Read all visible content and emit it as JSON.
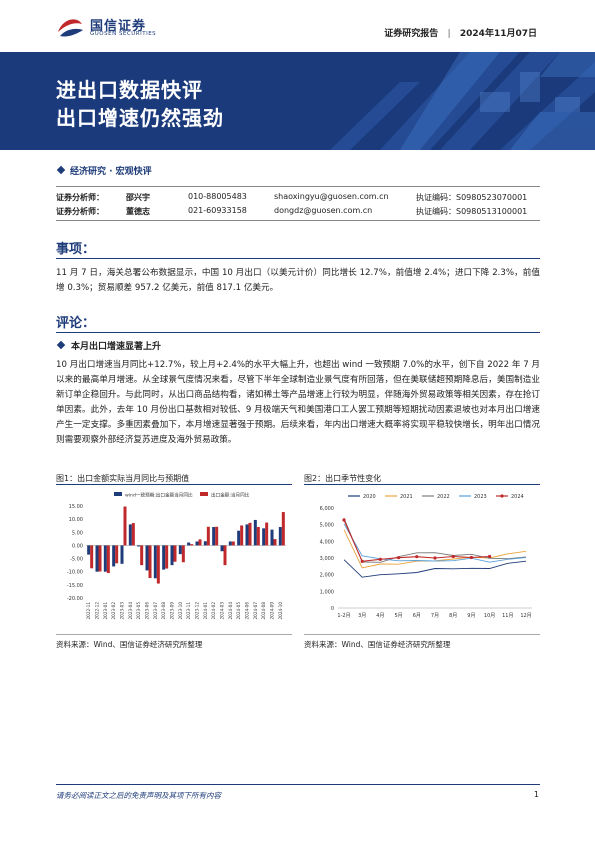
{
  "header": {
    "logo_cn": "国信证券",
    "logo_en": "GUOSEN SECURITIES",
    "report_type": "证券研究报告",
    "date": "2024年11月07日"
  },
  "banner": {
    "title_line1": "进出口数据快评",
    "title_line2": "出口增速仍然强劲"
  },
  "category": "经济研究 · 宏观快评",
  "analysts": [
    {
      "role": "证券分析师：",
      "name": "邵兴宇",
      "phone": "010-88005483",
      "email": "shaoxingyu@guosen.com.cn",
      "cert": "执证编码：S0980523070001"
    },
    {
      "role": "证券分析师：",
      "name": "董德志",
      "phone": "021-60933158",
      "email": "dongdz@guosen.com.cn",
      "cert": "执证编码：S0980513100001"
    }
  ],
  "sections": {
    "matter_title": "事项：",
    "matter_text": "11 月 7 日，海关总署公布数据显示，中国 10 月出口（以美元计价）同比增长 12.7%，前值增 2.4%；进口下降 2.3%，前值增 0.3%；贸易顺差 957.2 亿美元，前值 817.1 亿美元。",
    "comment_title": "评论：",
    "sub1_title": "本月出口增速显著上升",
    "sub1_text": "10 月出口增速当月同比+12.7%，较上月+2.4%的水平大幅上升，也超出 wind 一致预期 7.0%的水平，创下自 2022 年 7 月以来的最高单月增速。从全球景气度情况来看，尽管下半年全球制造业景气度有所回落，但在美联储超预期降息后，美国制造业新订单企稳回升。与此同时，从出口商品结构看，诸如稀土等产品增速上行较为明显，伴随海外贸易政策等相关因素，存在抢订单因素。此外，去年 10 月份出口基数相对较低、9 月极端天气和美国港口工人罢工预期等短期扰动因素退坡也对本月出口增速产生一定支撑。多重因素叠加下，本月增速显著强于预期。后续来看，年内出口增速大概率将实现平稳较快增长，明年出口情况则需要观察外部经济复苏进度及海外贸易政策。"
  },
  "figure1": {
    "title": "图1：出口金额实际当月同比与预期值",
    "source": "资料来源：Wind、国信证券经济研究所整理",
    "chart_data": {
      "type": "bar",
      "series": [
        {
          "name": "wind一致预期:出口金额当月同比",
          "color": "#1f3c7a"
        },
        {
          "name": "出口金额:当月同比",
          "color": "#c0292b"
        }
      ],
      "categories": [
        "2022-11",
        "2022-12",
        "2023-01",
        "2023-02",
        "2023-03",
        "2023-04",
        "2023-05",
        "2023-06",
        "2023-07",
        "2023-08",
        "2023-09",
        "2023-10",
        "2023-11",
        "2023-12",
        "2024-01",
        "2024-02",
        "2024-03",
        "2024-04",
        "2024-05",
        "2024-06",
        "2024-07",
        "2024-08",
        "2024-09",
        "2024-10"
      ],
      "tick_labels": [
        "2022-11",
        "2022-12",
        "2023-01",
        "2023-02",
        "2023-03",
        "2023-04",
        "2023-05",
        "2023-06",
        "2023-07",
        "2023-08",
        "2023-09",
        "2023-10",
        "2023-11",
        "2023-12",
        "2024-01",
        "2024-02",
        "2024-03",
        "2024-04",
        "2024-05",
        "2024-06",
        "2024-07",
        "2024-08",
        "2024-09",
        "2024-10"
      ],
      "expected": [
        -3.5,
        -10.0,
        -10.0,
        -8.0,
        -7.0,
        8.0,
        -0.4,
        -9.5,
        -12.5,
        -9.2,
        -7.5,
        -3.3,
        1.1,
        1.5,
        1.6,
        7.0,
        -2.2,
        1.5,
        5.6,
        8.0,
        9.7,
        6.5,
        6.0,
        7.0
      ],
      "actual": [
        -8.7,
        -9.9,
        -10.5,
        -6.8,
        14.8,
        8.5,
        -7.5,
        -12.4,
        -14.5,
        -8.8,
        -6.2,
        -6.4,
        0.5,
        2.3,
        7.1,
        7.1,
        -7.5,
        1.5,
        7.6,
        8.6,
        7.0,
        8.7,
        2.4,
        12.7
      ],
      "yticks": [
        "15.00",
        "10.00",
        "5.00",
        "0.00",
        "-5.00",
        "-10.00",
        "-15.00",
        "-20.00"
      ],
      "ylim": [
        -20,
        15
      ],
      "legend": "top"
    }
  },
  "figure2": {
    "title": "图2：出口季节性变化",
    "source": "资料来源：Wind、国信证券经济研究所整理",
    "chart_data": {
      "type": "line",
      "categories": [
        "1-2月",
        "3月",
        "4月",
        "5月",
        "6月",
        "7月",
        "8月",
        "9月",
        "10月",
        "11月",
        "12月"
      ],
      "yticks": [
        "6,000",
        "5,000",
        "4,000",
        "3,000",
        "2,000",
        "1,000",
        "0"
      ],
      "ylim": [
        0,
        6000
      ],
      "legend": "top",
      "series": [
        {
          "name": "2020",
          "color": "#1f3c7a",
          "values": [
            2900,
            1850,
            2000,
            2050,
            2130,
            2370,
            2350,
            2380,
            2370,
            2680,
            2810
          ]
        },
        {
          "name": "2021",
          "color": "#e8a33d",
          "values": [
            4700,
            2410,
            2640,
            2630,
            2810,
            2830,
            2940,
            3050,
            3000,
            3250,
            3400
          ]
        },
        {
          "name": "2022",
          "color": "#7a7a7a",
          "values": [
            5400,
            2760,
            2740,
            3080,
            3310,
            3320,
            3150,
            3220,
            2980,
            2960,
            3060
          ]
        },
        {
          "name": "2023",
          "color": "#5aa0d8",
          "values": [
            5050,
            3130,
            2950,
            2830,
            2850,
            2820,
            2840,
            2990,
            2750,
            2920,
            3030
          ]
        },
        {
          "name": "2024",
          "color": "#c0292b",
          "values": [
            5280,
            2800,
            2920,
            3020,
            3080,
            3000,
            3090,
            3030,
            3090,
            null,
            null
          ]
        }
      ]
    }
  },
  "footer": {
    "disclaimer": "请务必阅读正文之后的免责声明及其项下所有内容",
    "page": "1"
  }
}
